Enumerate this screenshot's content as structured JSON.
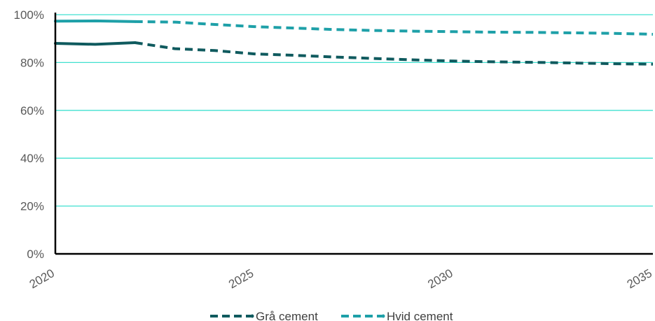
{
  "chart_data": {
    "type": "line",
    "title": "",
    "xlabel": "",
    "ylabel": "",
    "x_ticks": [
      "2020",
      "2025",
      "2030",
      "2035"
    ],
    "y_ticks": [
      "0%",
      "20%",
      "40%",
      "60%",
      "80%",
      "100%"
    ],
    "xlim": [
      2020,
      2035
    ],
    "ylim": [
      0,
      100
    ],
    "grid": "horizontal",
    "legend_position": "bottom",
    "historical_until": 2022,
    "x": [
      2020,
      2021,
      2022,
      2023,
      2024,
      2025,
      2026,
      2027,
      2028,
      2029,
      2030,
      2031,
      2032,
      2033,
      2034,
      2035
    ],
    "series": [
      {
        "name": "Grå cement",
        "color": "#0f5a5e",
        "values": [
          88.0,
          87.6,
          88.3,
          85.8,
          85.0,
          83.6,
          83.0,
          82.3,
          81.7,
          81.1,
          80.6,
          80.3,
          80.1,
          79.8,
          79.5,
          79.3
        ]
      },
      {
        "name": "Hvid cement",
        "color": "#1ea0a8",
        "values": [
          97.3,
          97.4,
          97.1,
          96.9,
          95.9,
          95.0,
          94.4,
          93.8,
          93.4,
          93.1,
          92.9,
          92.7,
          92.6,
          92.4,
          92.2,
          91.8
        ]
      }
    ],
    "gridline_color": "#40e0d0"
  }
}
